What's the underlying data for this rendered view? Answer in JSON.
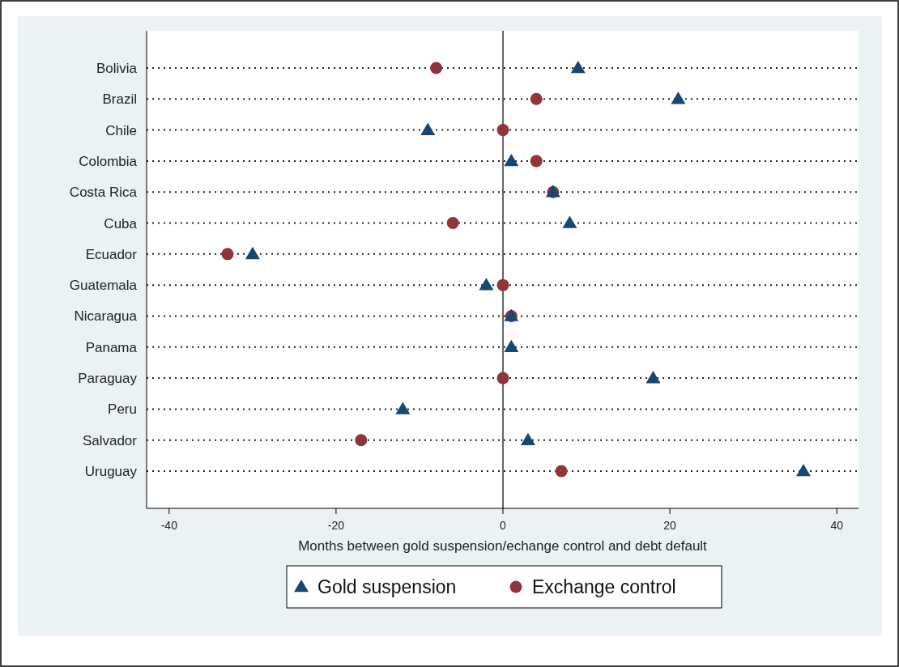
{
  "chart_data": {
    "type": "scatter",
    "xlabel": "Months between gold suspension/echange control and debt default",
    "categories": [
      "Bolivia",
      "Brazil",
      "Chile",
      "Colombia",
      "Costa Rica",
      "Cuba",
      "Ecuador",
      "Guatemala",
      "Nicaragua",
      "Panama",
      "Paraguay",
      "Peru",
      "Salvador",
      "Uruguay"
    ],
    "orientation": "horizontal",
    "series": [
      {
        "name": "Gold suspension",
        "color": "#1a476f",
        "marker": "triangle",
        "values": [
          9,
          21,
          -9,
          1,
          6,
          8,
          -30,
          -2,
          1,
          1,
          18,
          -12,
          3,
          36
        ]
      },
      {
        "name": "Exchange control",
        "color": "#90353b",
        "marker": "circle",
        "values": [
          -8,
          4,
          0,
          4,
          6,
          -6,
          -33,
          0,
          1,
          null,
          0,
          null,
          -17,
          7
        ]
      }
    ],
    "xlim": [
      -42.7,
      42.6
    ],
    "xticks": [
      -40,
      -20,
      0,
      20,
      40
    ],
    "ref_lines": [
      {
        "axis": "x",
        "value": 0
      }
    ],
    "grid": "y",
    "legend": "bottom"
  }
}
